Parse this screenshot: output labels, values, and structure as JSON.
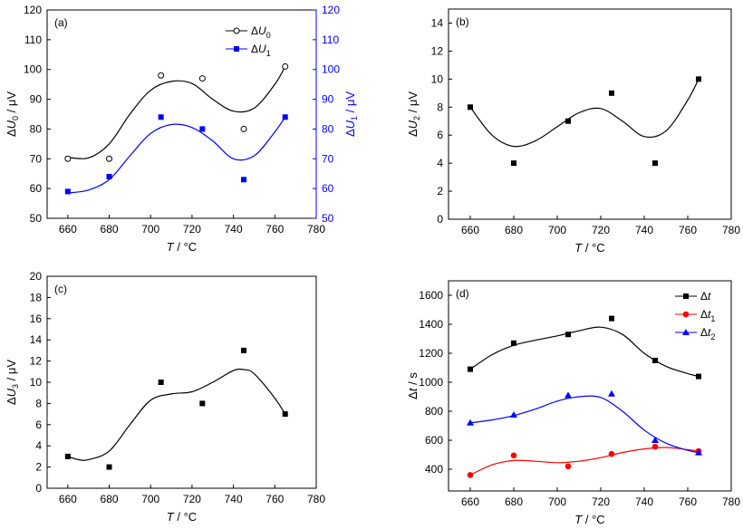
{
  "chart_data": [
    {
      "type": "scatter",
      "panel_label": "(a)",
      "xlabel": "T / °C",
      "ylabel": "ΔU0 / μV",
      "ylabel_right": "ΔU1 / μV",
      "xlim": [
        650,
        780
      ],
      "ylim": [
        50,
        120
      ],
      "ylim_right": [
        50,
        120
      ],
      "xticks": [
        660,
        680,
        700,
        720,
        740,
        760,
        780
      ],
      "yticks": [
        50,
        60,
        70,
        80,
        90,
        100,
        110,
        120
      ],
      "legend_position": "top-right",
      "series": [
        {
          "name": "ΔU0",
          "marker": "open-circle",
          "color": "#000000",
          "axis": "left",
          "x": [
            660,
            680,
            705,
            725,
            745,
            765
          ],
          "y": [
            70,
            70,
            98,
            97,
            80,
            101
          ]
        },
        {
          "name": "ΔU1",
          "marker": "square",
          "color": "#0000ff",
          "axis": "right",
          "x": [
            660,
            680,
            705,
            725,
            745,
            765
          ],
          "y": [
            59,
            64,
            84,
            80,
            63,
            84
          ]
        }
      ],
      "fits": [
        {
          "color": "#000000",
          "x": [
            660,
            670,
            680,
            690,
            700,
            710,
            720,
            730,
            740,
            750,
            760,
            765
          ],
          "y": [
            70.5,
            70.3,
            75,
            85,
            93,
            96,
            95.3,
            90,
            86,
            87,
            95,
            101
          ]
        },
        {
          "color": "#0000ff",
          "x": [
            660,
            670,
            680,
            690,
            700,
            710,
            720,
            730,
            740,
            750,
            760,
            765
          ],
          "y": [
            58.5,
            59.5,
            63,
            71,
            78.5,
            81.5,
            80.5,
            76,
            70,
            71,
            79,
            84
          ]
        }
      ]
    },
    {
      "type": "scatter",
      "panel_label": "(b)",
      "xlabel": "T / °C",
      "ylabel": "ΔU2 / μV",
      "xlim": [
        650,
        780
      ],
      "ylim": [
        0,
        15
      ],
      "xticks": [
        660,
        680,
        700,
        720,
        740,
        760,
        780
      ],
      "yticks": [
        0,
        2,
        4,
        6,
        8,
        10,
        12,
        14
      ],
      "series": [
        {
          "marker": "square",
          "color": "#000000",
          "x": [
            660,
            680,
            705,
            725,
            745,
            765
          ],
          "y": [
            8,
            4,
            7,
            9,
            4,
            10
          ]
        }
      ],
      "fits": [
        {
          "color": "#000000",
          "x": [
            660,
            670,
            680,
            690,
            700,
            710,
            720,
            730,
            740,
            750,
            760,
            765
          ],
          "y": [
            8,
            6,
            5.2,
            5.6,
            6.6,
            7.6,
            7.9,
            7,
            5.9,
            6.3,
            8.5,
            10
          ]
        }
      ]
    },
    {
      "type": "scatter",
      "panel_label": "(c)",
      "xlabel": "T / °C",
      "ylabel": "ΔU3 / μV",
      "xlim": [
        650,
        780
      ],
      "ylim": [
        0,
        20
      ],
      "xticks": [
        660,
        680,
        700,
        720,
        740,
        760,
        780
      ],
      "yticks": [
        0,
        2,
        4,
        6,
        8,
        10,
        12,
        14,
        16,
        18,
        20
      ],
      "series": [
        {
          "marker": "square",
          "color": "#000000",
          "x": [
            660,
            680,
            705,
            725,
            745,
            765
          ],
          "y": [
            3,
            2,
            10,
            8,
            13,
            7
          ]
        }
      ],
      "fits": [
        {
          "color": "#000000",
          "x": [
            660,
            665,
            670,
            680,
            690,
            700,
            710,
            720,
            730,
            740,
            745,
            750,
            760,
            765
          ],
          "y": [
            3,
            2.7,
            2.7,
            3.5,
            6,
            8.3,
            8.9,
            9.1,
            10,
            11.1,
            11.2,
            10.8,
            8.5,
            7
          ]
        }
      ]
    },
    {
      "type": "scatter",
      "panel_label": "(d)",
      "xlabel": "T / °C",
      "ylabel": "Δt / s",
      "xlim": [
        650,
        780
      ],
      "ylim": [
        250,
        1700
      ],
      "xticks": [
        660,
        680,
        700,
        720,
        740,
        760,
        780
      ],
      "yticks": [
        400,
        600,
        800,
        1000,
        1200,
        1400,
        1600
      ],
      "legend_position": "top-right",
      "series": [
        {
          "name": "Δt",
          "marker": "square",
          "color": "#000000",
          "x": [
            660,
            680,
            705,
            725,
            745,
            765
          ],
          "y": [
            1090,
            1270,
            1330,
            1440,
            1150,
            1040
          ]
        },
        {
          "name": "Δt1",
          "marker": "circle",
          "color": "#ff0000",
          "x": [
            660,
            680,
            705,
            725,
            745,
            765
          ],
          "y": [
            360,
            495,
            420,
            505,
            555,
            525
          ]
        },
        {
          "name": "Δt2",
          "marker": "triangle",
          "color": "#0000ff",
          "x": [
            660,
            680,
            705,
            725,
            745,
            765
          ],
          "y": [
            720,
            775,
            910,
            920,
            600,
            515
          ]
        }
      ],
      "fits": [
        {
          "color": "#000000",
          "x": [
            660,
            670,
            680,
            690,
            700,
            710,
            720,
            730,
            740,
            750,
            760,
            765
          ],
          "y": [
            1090,
            1190,
            1255,
            1290,
            1320,
            1355,
            1380,
            1330,
            1200,
            1110,
            1060,
            1040
          ]
        },
        {
          "color": "#ff0000",
          "x": [
            660,
            670,
            680,
            690,
            700,
            710,
            720,
            730,
            740,
            750,
            760,
            765
          ],
          "y": [
            360,
            430,
            460,
            455,
            445,
            455,
            480,
            515,
            540,
            550,
            535,
            525
          ]
        },
        {
          "color": "#0000ff",
          "x": [
            660,
            670,
            680,
            690,
            700,
            710,
            720,
            730,
            740,
            750,
            760,
            765
          ],
          "y": [
            720,
            740,
            770,
            815,
            870,
            900,
            895,
            800,
            670,
            580,
            530,
            515
          ]
        }
      ]
    }
  ]
}
